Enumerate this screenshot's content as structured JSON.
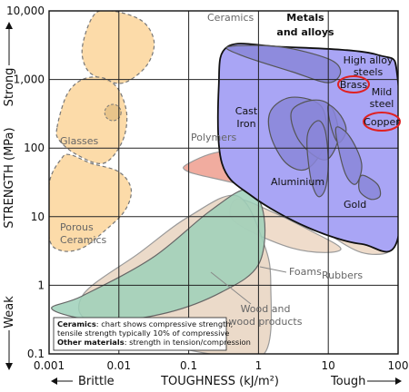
{
  "chart_data": {
    "type": "area",
    "title": "",
    "xlabel": "TOUGHNESS (kJ/m²)",
    "ylabel": "STRENGTH (MPa)",
    "x_scale": "log",
    "y_scale": "log",
    "xlim": [
      0.001,
      100
    ],
    "ylim": [
      0.1,
      10000
    ],
    "grid": true,
    "x_ticks": [
      "0.001",
      "0.01",
      "0.1",
      "1",
      "10",
      "100"
    ],
    "y_ticks": [
      "10,000",
      "1,000",
      "100",
      "10",
      "1",
      "0.1"
    ],
    "x_end_labels": {
      "left": "Brittle",
      "right": "Tough"
    },
    "y_end_labels": {
      "top": "Strong",
      "bottom": "Weak"
    },
    "regions": [
      {
        "name": "Ceramics",
        "fill": "#fbd59a",
        "stroke": "#777777",
        "dashed": true,
        "outline": [
          [
            0.003,
            3000
          ],
          [
            0.0045,
            9000
          ],
          [
            0.009,
            9800
          ],
          [
            0.022,
            7000
          ],
          [
            0.032,
            3500
          ],
          [
            0.025,
            1600
          ],
          [
            0.012,
            900
          ],
          [
            0.006,
            1000
          ],
          [
            0.0035,
            1400
          ]
        ]
      },
      {
        "name": "Glasses",
        "fill": "#fbd59a",
        "stroke": "#777777",
        "dashed": true,
        "outline": [
          [
            0.0013,
            200
          ],
          [
            0.0018,
            600
          ],
          [
            0.003,
            1000
          ],
          [
            0.006,
            1050
          ],
          [
            0.01,
            700
          ],
          [
            0.013,
            300
          ],
          [
            0.011,
            120
          ],
          [
            0.006,
            60
          ],
          [
            0.0025,
            80
          ],
          [
            0.0014,
            130
          ]
        ]
      },
      {
        "name": "Porous Ceramics",
        "fill": "#fbd59a",
        "stroke": "#777777",
        "dashed": true,
        "outline": [
          [
            0.001,
            5
          ],
          [
            0.001,
            30
          ],
          [
            0.0015,
            70
          ],
          [
            0.002,
            80
          ],
          [
            0.004,
            60
          ],
          [
            0.01,
            45
          ],
          [
            0.015,
            25
          ],
          [
            0.012,
            12
          ],
          [
            0.006,
            6
          ],
          [
            0.003,
            3.5
          ],
          [
            0.0015,
            3.2
          ]
        ]
      },
      {
        "name": "Foams",
        "fill": "#ecd6c2",
        "stroke": "#999999",
        "dashed": false,
        "outline": [
          [
            0.5,
            18
          ],
          [
            1.5,
            12
          ],
          [
            6,
            6
          ],
          [
            15,
            3.5
          ],
          [
            9,
            3
          ],
          [
            3,
            3.5
          ],
          [
            0.8,
            6
          ],
          [
            0.4,
            10
          ]
        ]
      },
      {
        "name": "Rubbers",
        "fill": "#ecd6c2",
        "stroke": "#999999",
        "dashed": false,
        "outline": [
          [
            8,
            13
          ],
          [
            30,
            9
          ],
          [
            80,
            5
          ],
          [
            70,
            3
          ],
          [
            30,
            3
          ],
          [
            12,
            5
          ],
          [
            6,
            9
          ]
        ]
      },
      {
        "name": "Wood and wood products",
        "fill": "#e8d4bf",
        "stroke": "#999999",
        "dashed": false,
        "outline": [
          [
            0.003,
            0.7
          ],
          [
            0.005,
            0.25
          ],
          [
            0.2,
            0.1
          ],
          [
            1.2,
            0.1
          ],
          [
            1.5,
            1
          ],
          [
            1.2,
            4
          ],
          [
            0.5,
            20
          ],
          [
            0.1,
            10
          ],
          [
            0.02,
            3
          ]
        ]
      },
      {
        "name": "Polymers",
        "fill": "#ee9d8e",
        "stroke": "#999999",
        "dashed": false,
        "outline": [
          [
            0.1,
            60
          ],
          [
            0.35,
            90
          ],
          [
            2,
            60
          ],
          [
            20,
            25
          ],
          [
            100,
            12
          ],
          [
            100,
            6
          ],
          [
            40,
            7
          ],
          [
            5,
            15
          ],
          [
            0.5,
            30
          ],
          [
            0.1,
            45
          ]
        ]
      },
      {
        "name": "",
        "fill": "#9ed0b8",
        "stroke": "#666666",
        "dashed": false,
        "outline": [
          [
            0.0011,
            0.45
          ],
          [
            0.003,
            0.7
          ],
          [
            0.03,
            2.5
          ],
          [
            0.2,
            12
          ],
          [
            0.7,
            25
          ],
          [
            1.2,
            10
          ],
          [
            1.0,
            2
          ],
          [
            0.3,
            0.8
          ],
          [
            0.05,
            0.4
          ],
          [
            0.006,
            0.3
          ]
        ]
      },
      {
        "name": "Metals and alloys",
        "fill": "#a9a5f5",
        "stroke": "#111111",
        "dashed": false,
        "outline": [
          [
            0.36,
            3000
          ],
          [
            2,
            3000
          ],
          [
            50,
            2300
          ],
          [
            100,
            900
          ],
          [
            100,
            5
          ],
          [
            30,
            4
          ],
          [
            5,
            7
          ],
          [
            0.8,
            20
          ],
          [
            0.3,
            60
          ],
          [
            0.27,
            800
          ]
        ]
      },
      {
        "name": "High alloy steels",
        "fill": "#8a86d8",
        "stroke": "#555555",
        "dashed": false,
        "outline": [
          [
            0.37,
            3000
          ],
          [
            2,
            3000
          ],
          [
            10,
            2000
          ],
          [
            15,
            1300
          ],
          [
            10,
            900
          ],
          [
            3,
            1300
          ],
          [
            0.6,
            2200
          ]
        ]
      },
      {
        "name": "Cast Iron",
        "fill": "#8a86d8",
        "stroke": "#555555",
        "dashed": false,
        "outline": [
          [
            1.5,
            350
          ],
          [
            3,
            550
          ],
          [
            8,
            400
          ],
          [
            9,
            120
          ],
          [
            5,
            50
          ],
          [
            2.5,
            60
          ],
          [
            1.5,
            150
          ]
        ]
      },
      {
        "name": "Brass",
        "fill": "#8a86d8",
        "stroke": "#555555",
        "dashed": false,
        "outline": [
          [
            3,
            350
          ],
          [
            6,
            500
          ],
          [
            11,
            400
          ],
          [
            14,
            150
          ],
          [
            10,
            70
          ],
          [
            6,
            80
          ],
          [
            3.5,
            150
          ]
        ]
      },
      {
        "name": "Mild steel",
        "fill": "#8a86d8",
        "stroke": "#555555",
        "dashed": false,
        "outline": [
          [
            10,
            420
          ],
          [
            15,
            300
          ],
          [
            18,
            180
          ],
          [
            14,
            120
          ],
          [
            11,
            200
          ]
        ]
      },
      {
        "name": "Copper",
        "fill": "#8a86d8",
        "stroke": "#555555",
        "dashed": false,
        "outline": [
          [
            13,
            200
          ],
          [
            20,
            150
          ],
          [
            30,
            60
          ],
          [
            25,
            30
          ],
          [
            18,
            40
          ],
          [
            14,
            100
          ]
        ]
      },
      {
        "name": "Aluminium",
        "fill": "#8a86d8",
        "stroke": "#555555",
        "dashed": false,
        "outline": [
          [
            5,
            150
          ],
          [
            7,
            250
          ],
          [
            9,
            180
          ],
          [
            10,
            60
          ],
          [
            9,
            25
          ],
          [
            7,
            20
          ],
          [
            5.5,
            40
          ]
        ]
      },
      {
        "name": "Gold",
        "fill": "#8a86d8",
        "stroke": "#555555",
        "dashed": false,
        "outline": [
          [
            30,
            40
          ],
          [
            50,
            30
          ],
          [
            55,
            20
          ],
          [
            40,
            18
          ],
          [
            28,
            24
          ]
        ]
      }
    ],
    "circled_labels": [
      "Brass",
      "Copper"
    ],
    "annotations": [
      {
        "bold": "Ceramics",
        "text": ": chart shows compressive strength,"
      },
      {
        "bold": "",
        "text": "tensile strength typically 10% of compressive"
      },
      {
        "bold": "Other materials",
        "text": ": strength in tension/compression"
      }
    ]
  },
  "labels": {
    "ceramics": "Ceramics",
    "metals_line1": "Metals",
    "metals_line2": "and alloys",
    "high_alloy_line1": "High alloy",
    "high_alloy_line2": "steels",
    "brass": "Brass",
    "mild_line1": "Mild",
    "mild_line2": "steel",
    "copper": "Copper",
    "cast_line1": "Cast",
    "cast_line2": "Iron",
    "glasses": "Glasses",
    "polymers": "Polymers",
    "aluminium": "Aluminium",
    "gold": "Gold",
    "porous_line1": "Porous",
    "porous_line2": "Ceramics",
    "rubbers": "Rubbers",
    "foams": "Foams",
    "wood_line1": "Wood and",
    "wood_line2": "wood products"
  },
  "colors": {
    "frame": "#111111",
    "grid": "#222222",
    "highlight_circle": "#e02020"
  }
}
